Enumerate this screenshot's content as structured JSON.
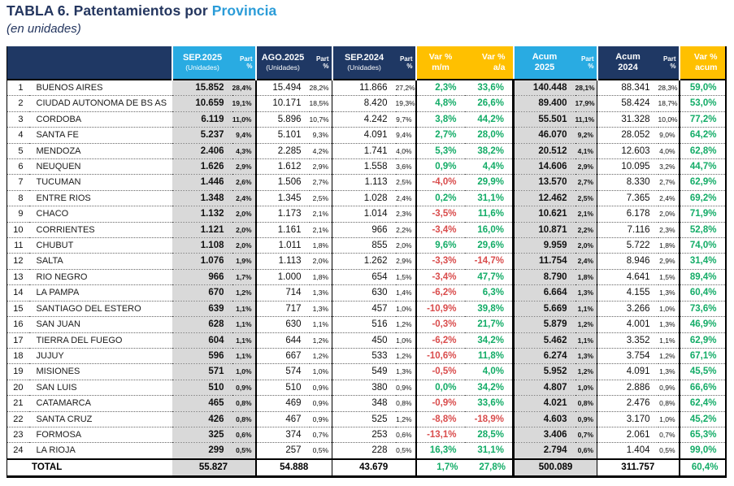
{
  "chart_data": {
    "type": "table",
    "title_prefix": "TABLA 6. Patentamientos por ",
    "title_highlight": "Provincia",
    "subtitle": "(en unidades)",
    "headers": {
      "sep2025": {
        "line1": "SEP.2025",
        "line2": "(Unidades)"
      },
      "ago2025": {
        "line1": "AGO.2025",
        "line2": "(Unidades)"
      },
      "sep2024": {
        "line1": "SEP.2024",
        "line2": "(Unidades)"
      },
      "part": {
        "line1": "Part",
        "line2": "%"
      },
      "var_mm": {
        "line1": "Var %",
        "line2": "m/m"
      },
      "var_aa": {
        "line1": "Var %",
        "line2": "a/a"
      },
      "acum2025": {
        "line1": "Acum",
        "line2": "2025"
      },
      "acum2024": {
        "line1": "Acum",
        "line2": "2024"
      },
      "var_acum": {
        "line1": "Var %",
        "line2": "acum"
      }
    },
    "rows": [
      {
        "rank": "1",
        "province": "BUENOS AIRES",
        "sep2025": "15.852",
        "sep2025_part": "28,4%",
        "ago2025": "15.494",
        "ago2025_part": "28,2%",
        "sep2024": "11.866",
        "sep2024_part": "27,2%",
        "var_mm": "2,3%",
        "var_aa": "33,6%",
        "acum2025": "140.448",
        "acum2025_part": "28,1%",
        "acum2024": "88.341",
        "acum2024_part": "28,3%",
        "var_acum": "59,0%"
      },
      {
        "rank": "2",
        "province": "CIUDAD AUTONOMA DE BS AS",
        "sep2025": "10.659",
        "sep2025_part": "19,1%",
        "ago2025": "10.171",
        "ago2025_part": "18,5%",
        "sep2024": "8.420",
        "sep2024_part": "19,3%",
        "var_mm": "4,8%",
        "var_aa": "26,6%",
        "acum2025": "89.400",
        "acum2025_part": "17,9%",
        "acum2024": "58.424",
        "acum2024_part": "18,7%",
        "var_acum": "53,0%"
      },
      {
        "rank": "3",
        "province": "CORDOBA",
        "sep2025": "6.119",
        "sep2025_part": "11,0%",
        "ago2025": "5.896",
        "ago2025_part": "10,7%",
        "sep2024": "4.242",
        "sep2024_part": "9,7%",
        "var_mm": "3,8%",
        "var_aa": "44,2%",
        "acum2025": "55.501",
        "acum2025_part": "11,1%",
        "acum2024": "31.328",
        "acum2024_part": "10,0%",
        "var_acum": "77,2%"
      },
      {
        "rank": "4",
        "province": "SANTA FE",
        "sep2025": "5.237",
        "sep2025_part": "9,4%",
        "ago2025": "5.101",
        "ago2025_part": "9,3%",
        "sep2024": "4.091",
        "sep2024_part": "9,4%",
        "var_mm": "2,7%",
        "var_aa": "28,0%",
        "acum2025": "46.070",
        "acum2025_part": "9,2%",
        "acum2024": "28.052",
        "acum2024_part": "9,0%",
        "var_acum": "64,2%"
      },
      {
        "rank": "5",
        "province": "MENDOZA",
        "sep2025": "2.406",
        "sep2025_part": "4,3%",
        "ago2025": "2.285",
        "ago2025_part": "4,2%",
        "sep2024": "1.741",
        "sep2024_part": "4,0%",
        "var_mm": "5,3%",
        "var_aa": "38,2%",
        "acum2025": "20.512",
        "acum2025_part": "4,1%",
        "acum2024": "12.603",
        "acum2024_part": "4,0%",
        "var_acum": "62,8%"
      },
      {
        "rank": "6",
        "province": "NEUQUEN",
        "sep2025": "1.626",
        "sep2025_part": "2,9%",
        "ago2025": "1.612",
        "ago2025_part": "2,9%",
        "sep2024": "1.558",
        "sep2024_part": "3,6%",
        "var_mm": "0,9%",
        "var_aa": "4,4%",
        "acum2025": "14.606",
        "acum2025_part": "2,9%",
        "acum2024": "10.095",
        "acum2024_part": "3,2%",
        "var_acum": "44,7%"
      },
      {
        "rank": "7",
        "province": "TUCUMAN",
        "sep2025": "1.446",
        "sep2025_part": "2,6%",
        "ago2025": "1.506",
        "ago2025_part": "2,7%",
        "sep2024": "1.113",
        "sep2024_part": "2,5%",
        "var_mm": "-4,0%",
        "var_aa": "29,9%",
        "acum2025": "13.570",
        "acum2025_part": "2,7%",
        "acum2024": "8.330",
        "acum2024_part": "2,7%",
        "var_acum": "62,9%"
      },
      {
        "rank": "8",
        "province": "ENTRE RIOS",
        "sep2025": "1.348",
        "sep2025_part": "2,4%",
        "ago2025": "1.345",
        "ago2025_part": "2,5%",
        "sep2024": "1.028",
        "sep2024_part": "2,4%",
        "var_mm": "0,2%",
        "var_aa": "31,1%",
        "acum2025": "12.462",
        "acum2025_part": "2,5%",
        "acum2024": "7.365",
        "acum2024_part": "2,4%",
        "var_acum": "69,2%"
      },
      {
        "rank": "9",
        "province": "CHACO",
        "sep2025": "1.132",
        "sep2025_part": "2,0%",
        "ago2025": "1.173",
        "ago2025_part": "2,1%",
        "sep2024": "1.014",
        "sep2024_part": "2,3%",
        "var_mm": "-3,5%",
        "var_aa": "11,6%",
        "acum2025": "10.621",
        "acum2025_part": "2,1%",
        "acum2024": "6.178",
        "acum2024_part": "2,0%",
        "var_acum": "71,9%"
      },
      {
        "rank": "10",
        "province": "CORRIENTES",
        "sep2025": "1.121",
        "sep2025_part": "2,0%",
        "ago2025": "1.161",
        "ago2025_part": "2,1%",
        "sep2024": "966",
        "sep2024_part": "2,2%",
        "var_mm": "-3,4%",
        "var_aa": "16,0%",
        "acum2025": "10.871",
        "acum2025_part": "2,2%",
        "acum2024": "7.116",
        "acum2024_part": "2,3%",
        "var_acum": "52,8%"
      },
      {
        "rank": "11",
        "province": "CHUBUT",
        "sep2025": "1.108",
        "sep2025_part": "2,0%",
        "ago2025": "1.011",
        "ago2025_part": "1,8%",
        "sep2024": "855",
        "sep2024_part": "2,0%",
        "var_mm": "9,6%",
        "var_aa": "29,6%",
        "acum2025": "9.959",
        "acum2025_part": "2,0%",
        "acum2024": "5.722",
        "acum2024_part": "1,8%",
        "var_acum": "74,0%"
      },
      {
        "rank": "12",
        "province": "SALTA",
        "sep2025": "1.076",
        "sep2025_part": "1,9%",
        "ago2025": "1.113",
        "ago2025_part": "2,0%",
        "sep2024": "1.262",
        "sep2024_part": "2,9%",
        "var_mm": "-3,3%",
        "var_aa": "-14,7%",
        "acum2025": "11.754",
        "acum2025_part": "2,4%",
        "acum2024": "8.946",
        "acum2024_part": "2,9%",
        "var_acum": "31,4%"
      },
      {
        "rank": "13",
        "province": "RIO NEGRO",
        "sep2025": "966",
        "sep2025_part": "1,7%",
        "ago2025": "1.000",
        "ago2025_part": "1,8%",
        "sep2024": "654",
        "sep2024_part": "1,5%",
        "var_mm": "-3,4%",
        "var_aa": "47,7%",
        "acum2025": "8.790",
        "acum2025_part": "1,8%",
        "acum2024": "4.641",
        "acum2024_part": "1,5%",
        "var_acum": "89,4%"
      },
      {
        "rank": "14",
        "province": "LA PAMPA",
        "sep2025": "670",
        "sep2025_part": "1,2%",
        "ago2025": "714",
        "ago2025_part": "1,3%",
        "sep2024": "630",
        "sep2024_part": "1,4%",
        "var_mm": "-6,2%",
        "var_aa": "6,3%",
        "acum2025": "6.664",
        "acum2025_part": "1,3%",
        "acum2024": "4.155",
        "acum2024_part": "1,3%",
        "var_acum": "60,4%"
      },
      {
        "rank": "15",
        "province": "SANTIAGO DEL ESTERO",
        "sep2025": "639",
        "sep2025_part": "1,1%",
        "ago2025": "717",
        "ago2025_part": "1,3%",
        "sep2024": "457",
        "sep2024_part": "1,0%",
        "var_mm": "-10,9%",
        "var_aa": "39,8%",
        "acum2025": "5.669",
        "acum2025_part": "1,1%",
        "acum2024": "3.266",
        "acum2024_part": "1,0%",
        "var_acum": "73,6%"
      },
      {
        "rank": "16",
        "province": "SAN JUAN",
        "sep2025": "628",
        "sep2025_part": "1,1%",
        "ago2025": "630",
        "ago2025_part": "1,1%",
        "sep2024": "516",
        "sep2024_part": "1,2%",
        "var_mm": "-0,3%",
        "var_aa": "21,7%",
        "acum2025": "5.879",
        "acum2025_part": "1,2%",
        "acum2024": "4.001",
        "acum2024_part": "1,3%",
        "var_acum": "46,9%"
      },
      {
        "rank": "17",
        "province": "TIERRA DEL FUEGO",
        "sep2025": "604",
        "sep2025_part": "1,1%",
        "ago2025": "644",
        "ago2025_part": "1,2%",
        "sep2024": "450",
        "sep2024_part": "1,0%",
        "var_mm": "-6,2%",
        "var_aa": "34,2%",
        "acum2025": "5.462",
        "acum2025_part": "1,1%",
        "acum2024": "3.352",
        "acum2024_part": "1,1%",
        "var_acum": "62,9%"
      },
      {
        "rank": "18",
        "province": "JUJUY",
        "sep2025": "596",
        "sep2025_part": "1,1%",
        "ago2025": "667",
        "ago2025_part": "1,2%",
        "sep2024": "533",
        "sep2024_part": "1,2%",
        "var_mm": "-10,6%",
        "var_aa": "11,8%",
        "acum2025": "6.274",
        "acum2025_part": "1,3%",
        "acum2024": "3.754",
        "acum2024_part": "1,2%",
        "var_acum": "67,1%"
      },
      {
        "rank": "19",
        "province": "MISIONES",
        "sep2025": "571",
        "sep2025_part": "1,0%",
        "ago2025": "574",
        "ago2025_part": "1,0%",
        "sep2024": "549",
        "sep2024_part": "1,3%",
        "var_mm": "-0,5%",
        "var_aa": "4,0%",
        "acum2025": "5.952",
        "acum2025_part": "1,2%",
        "acum2024": "4.091",
        "acum2024_part": "1,3%",
        "var_acum": "45,5%"
      },
      {
        "rank": "20",
        "province": "SAN LUIS",
        "sep2025": "510",
        "sep2025_part": "0,9%",
        "ago2025": "510",
        "ago2025_part": "0,9%",
        "sep2024": "380",
        "sep2024_part": "0,9%",
        "var_mm": "0,0%",
        "var_aa": "34,2%",
        "acum2025": "4.807",
        "acum2025_part": "1,0%",
        "acum2024": "2.886",
        "acum2024_part": "0,9%",
        "var_acum": "66,6%"
      },
      {
        "rank": "21",
        "province": "CATAMARCA",
        "sep2025": "465",
        "sep2025_part": "0,8%",
        "ago2025": "469",
        "ago2025_part": "0,9%",
        "sep2024": "348",
        "sep2024_part": "0,8%",
        "var_mm": "-0,9%",
        "var_aa": "33,6%",
        "acum2025": "4.021",
        "acum2025_part": "0,8%",
        "acum2024": "2.476",
        "acum2024_part": "0,8%",
        "var_acum": "62,4%"
      },
      {
        "rank": "22",
        "province": "SANTA CRUZ",
        "sep2025": "426",
        "sep2025_part": "0,8%",
        "ago2025": "467",
        "ago2025_part": "0,9%",
        "sep2024": "525",
        "sep2024_part": "1,2%",
        "var_mm": "-8,8%",
        "var_aa": "-18,9%",
        "acum2025": "4.603",
        "acum2025_part": "0,9%",
        "acum2024": "3.170",
        "acum2024_part": "1,0%",
        "var_acum": "45,2%"
      },
      {
        "rank": "23",
        "province": "FORMOSA",
        "sep2025": "325",
        "sep2025_part": "0,6%",
        "ago2025": "374",
        "ago2025_part": "0,7%",
        "sep2024": "253",
        "sep2024_part": "0,6%",
        "var_mm": "-13,1%",
        "var_aa": "28,5%",
        "acum2025": "3.406",
        "acum2025_part": "0,7%",
        "acum2024": "2.061",
        "acum2024_part": "0,7%",
        "var_acum": "65,3%"
      },
      {
        "rank": "24",
        "province": "LA RIOJA",
        "sep2025": "299",
        "sep2025_part": "0,5%",
        "ago2025": "257",
        "ago2025_part": "0,5%",
        "sep2024": "228",
        "sep2024_part": "0,5%",
        "var_mm": "16,3%",
        "var_aa": "31,1%",
        "acum2025": "2.794",
        "acum2025_part": "0,6%",
        "acum2024": "1.404",
        "acum2024_part": "0,5%",
        "var_acum": "99,0%"
      }
    ],
    "total": {
      "label": "TOTAL",
      "sep2025": "55.827",
      "ago2025": "54.888",
      "sep2024": "43.679",
      "var_mm": "1,7%",
      "var_aa": "27,8%",
      "acum2025": "500.089",
      "acum2024": "311.757",
      "var_acum": "60,4%"
    }
  },
  "colors": {
    "header_navy": "#1F3864",
    "header_cyan": "#29ABE2",
    "header_yellow": "#FFC000",
    "positive_green": "#13AC67",
    "negative_red": "#D94C4C",
    "highlight_column_gray": "#D9D9D9",
    "title_navy": "#24365F",
    "title_highlight_blue": "#2B9CD8"
  }
}
